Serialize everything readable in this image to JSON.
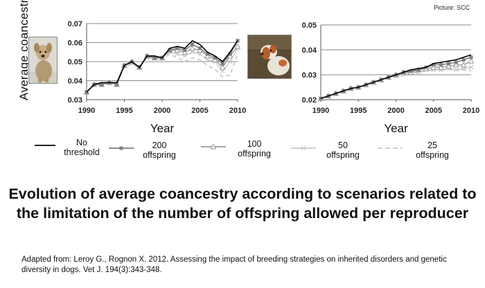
{
  "credit": "Picture: SCC",
  "ylabel": "Average  coancestry",
  "legend": [
    {
      "label": "No\nthreshold",
      "color": "#000000",
      "marker": "none",
      "dash": "solid"
    },
    {
      "label": "200\noffspring",
      "color": "#7f7f7f",
      "marker": "square",
      "dash": "solid"
    },
    {
      "label": "100\noffspring",
      "color": "#9a9a9a",
      "marker": "triangle",
      "dash": "solid"
    },
    {
      "label": "50\noffspring",
      "color": "#c6c6c6",
      "marker": "x",
      "dash": "solid"
    },
    {
      "label": "25\noffspring",
      "color": "#c6c6c6",
      "marker": "none",
      "dash": "dashed"
    }
  ],
  "title": "Evolution of average coancestry according to scenarios related to the limitation of the number of offspring allowed per reproducer",
  "source": "Adapted from: Leroy G., Rognon X. 2012. Assessing the impact of breeding strategies on inherited disorders and genetic diversity in dogs. Vet J. 194(3):343-348.",
  "chart_data": [
    {
      "type": "line",
      "title": "",
      "xlabel": "Year",
      "ylabel": "Average  coancestry",
      "xlim": [
        1990,
        2010
      ],
      "ylim": [
        0.03,
        0.07
      ],
      "xticks": [
        "1990",
        "1995",
        "2000",
        "2005",
        "2010"
      ],
      "yticks": [
        "0.03",
        "0.04",
        "0.05",
        "0.06",
        "0.07"
      ],
      "x": [
        1990,
        1991,
        1992,
        1993,
        1994,
        1995,
        1996,
        1997,
        1998,
        1999,
        2000,
        2001,
        2002,
        2003,
        2004,
        2005,
        2006,
        2007,
        2008,
        2009,
        2010
      ],
      "series": [
        {
          "name": "No threshold",
          "values": [
            0.034,
            0.038,
            0.039,
            0.039,
            0.039,
            0.048,
            0.05,
            0.047,
            0.053,
            0.053,
            0.052,
            0.057,
            0.058,
            0.057,
            0.061,
            0.059,
            0.055,
            0.053,
            0.05,
            0.055,
            0.061
          ]
        },
        {
          "name": "200 offspring",
          "values": [
            0.034,
            0.038,
            0.038,
            0.039,
            0.038,
            0.048,
            0.05,
            0.047,
            0.053,
            0.052,
            0.052,
            0.056,
            0.057,
            0.056,
            0.059,
            0.057,
            0.054,
            0.052,
            0.049,
            0.054,
            0.061
          ]
        },
        {
          "name": "100 offspring",
          "values": [
            0.034,
            0.038,
            0.038,
            0.039,
            0.038,
            0.048,
            0.05,
            0.047,
            0.053,
            0.052,
            0.052,
            0.056,
            0.056,
            0.055,
            0.057,
            0.056,
            0.053,
            0.051,
            0.047,
            0.053,
            0.058
          ]
        },
        {
          "name": "50 offspring",
          "values": [
            0.034,
            0.038,
            0.038,
            0.039,
            0.038,
            0.048,
            0.049,
            0.047,
            0.052,
            0.052,
            0.052,
            0.055,
            0.054,
            0.053,
            0.055,
            0.054,
            0.051,
            0.05,
            0.045,
            0.05,
            0.057
          ]
        },
        {
          "name": "25 offspring",
          "values": [
            0.034,
            0.037,
            0.038,
            0.039,
            0.038,
            0.047,
            0.049,
            0.046,
            0.052,
            0.051,
            0.051,
            0.054,
            0.052,
            0.05,
            0.052,
            0.051,
            0.048,
            0.046,
            0.042,
            0.043,
            0.054
          ]
        }
      ]
    },
    {
      "type": "line",
      "title": "",
      "xlabel": "Year",
      "ylabel": "",
      "xlim": [
        1990,
        2010
      ],
      "ylim": [
        0.02,
        0.05
      ],
      "xticks": [
        "1990",
        "1995",
        "2000",
        "2005",
        "2010"
      ],
      "yticks": [
        "0.02",
        "0.03",
        "0.04",
        "0.05"
      ],
      "x": [
        1990,
        1991,
        1992,
        1993,
        1994,
        1995,
        1996,
        1997,
        1998,
        1999,
        2000,
        2001,
        2002,
        2003,
        2004,
        2005,
        2006,
        2007,
        2008,
        2009,
        2010
      ],
      "series": [
        {
          "name": "No threshold",
          "values": [
            0.0205,
            0.0215,
            0.0225,
            0.0235,
            0.0245,
            0.025,
            0.026,
            0.027,
            0.028,
            0.029,
            0.03,
            0.031,
            0.032,
            0.0325,
            0.033,
            0.0345,
            0.035,
            0.0355,
            0.036,
            0.037,
            0.038
          ]
        },
        {
          "name": "200 offspring",
          "values": [
            0.0205,
            0.0215,
            0.0225,
            0.0235,
            0.0245,
            0.025,
            0.026,
            0.027,
            0.028,
            0.029,
            0.03,
            0.031,
            0.0315,
            0.032,
            0.033,
            0.034,
            0.034,
            0.0345,
            0.035,
            0.036,
            0.037
          ]
        },
        {
          "name": "100 offspring",
          "values": [
            0.0205,
            0.0215,
            0.0225,
            0.0235,
            0.0245,
            0.025,
            0.026,
            0.027,
            0.028,
            0.029,
            0.03,
            0.031,
            0.031,
            0.032,
            0.0325,
            0.033,
            0.033,
            0.0335,
            0.034,
            0.034,
            0.0355
          ]
        },
        {
          "name": "50 offspring",
          "values": [
            0.0205,
            0.0215,
            0.0225,
            0.0235,
            0.0245,
            0.025,
            0.026,
            0.027,
            0.028,
            0.029,
            0.0295,
            0.03,
            0.031,
            0.031,
            0.032,
            0.032,
            0.032,
            0.0325,
            0.032,
            0.0325,
            0.033
          ]
        },
        {
          "name": "25 offspring",
          "values": [
            0.0205,
            0.0215,
            0.0225,
            0.0235,
            0.0245,
            0.025,
            0.026,
            0.027,
            0.028,
            0.029,
            0.0295,
            0.03,
            0.0305,
            0.031,
            0.0315,
            0.032,
            0.032,
            0.032,
            0.032,
            0.032,
            0.0315
          ]
        }
      ]
    }
  ]
}
